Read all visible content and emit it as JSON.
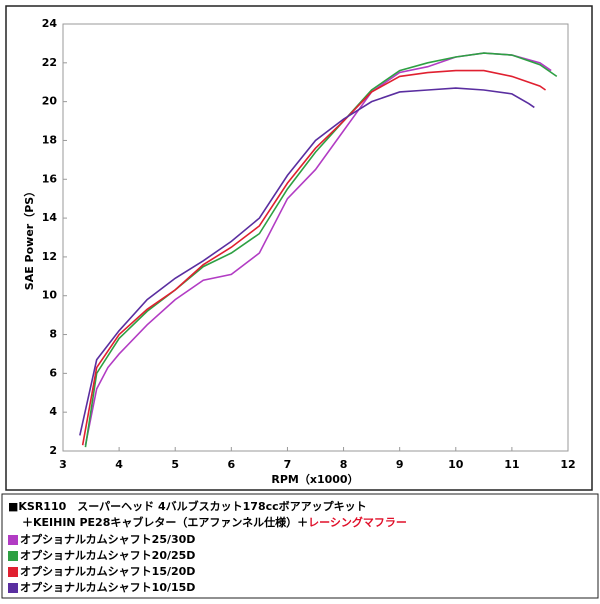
{
  "chart_data": {
    "type": "line",
    "x_label": "RPM（x1000）",
    "y_label": "SAE Power（PS）",
    "xlim": [
      3,
      12
    ],
    "xticks": [
      3,
      4,
      5,
      6,
      7,
      8,
      9,
      10,
      11,
      12
    ],
    "ylim": [
      2,
      24
    ],
    "yticks": [
      2,
      4,
      6,
      8,
      10,
      12,
      14,
      16,
      18,
      20,
      22,
      24
    ],
    "grid": false,
    "header": [
      "■KSR110　スーパーヘッド 4バルブスカット178ccボアアップキット",
      "＋KEIHIN PE28キャブレター（エアファンネル仕様）＋",
      "レーシングマフラー"
    ],
    "header_highlight_color": "#e0102a",
    "series": [
      {
        "name": "オプショナルカムシャフト25/30D",
        "color": "#b23cc4",
        "x": [
          3.4,
          3.6,
          3.8,
          4.0,
          4.5,
          5.0,
          5.5,
          6.0,
          6.5,
          7.0,
          7.5,
          8.0,
          8.5,
          9.0,
          9.5,
          10.0,
          10.5,
          11.0,
          11.5,
          11.7
        ],
        "values": [
          2.3,
          5.2,
          6.3,
          7.0,
          8.5,
          9.8,
          10.8,
          11.1,
          12.2,
          15.0,
          16.5,
          18.5,
          20.5,
          21.5,
          21.8,
          22.3,
          22.5,
          22.4,
          22.0,
          21.6
        ]
      },
      {
        "name": "オプショナルカムシャフト20/25D",
        "color": "#2ea043",
        "x": [
          3.4,
          3.6,
          4.0,
          4.5,
          5.0,
          5.5,
          6.0,
          6.5,
          7.0,
          7.5,
          8.0,
          8.5,
          9.0,
          9.5,
          10.0,
          10.5,
          11.0,
          11.5,
          11.8
        ],
        "values": [
          2.2,
          6.0,
          7.8,
          9.2,
          10.3,
          11.5,
          12.2,
          13.2,
          15.5,
          17.4,
          19.0,
          20.6,
          21.6,
          22.0,
          22.3,
          22.5,
          22.4,
          21.9,
          21.3
        ]
      },
      {
        "name": "オプショナルカムシャフト15/20D",
        "color": "#e02030",
        "x": [
          3.35,
          3.6,
          4.0,
          4.5,
          5.0,
          5.5,
          6.0,
          6.5,
          7.0,
          7.5,
          8.0,
          8.5,
          9.0,
          9.5,
          10.0,
          10.5,
          11.0,
          11.5,
          11.6
        ],
        "values": [
          2.3,
          6.3,
          8.0,
          9.3,
          10.3,
          11.6,
          12.5,
          13.6,
          15.8,
          17.6,
          19.0,
          20.5,
          21.3,
          21.5,
          21.6,
          21.6,
          21.3,
          20.8,
          20.6
        ]
      },
      {
        "name": "オプショナルカムシャフト10/15D",
        "color": "#5a2ea0",
        "x": [
          3.3,
          3.6,
          4.0,
          4.5,
          5.0,
          5.5,
          6.0,
          6.5,
          7.0,
          7.5,
          8.0,
          8.5,
          9.0,
          9.5,
          10.0,
          10.5,
          11.0,
          11.3,
          11.4
        ],
        "values": [
          2.8,
          6.7,
          8.2,
          9.8,
          10.9,
          11.8,
          12.8,
          14.0,
          16.2,
          18.0,
          19.1,
          20.0,
          20.5,
          20.6,
          20.7,
          20.6,
          20.4,
          19.9,
          19.7
        ]
      }
    ]
  }
}
